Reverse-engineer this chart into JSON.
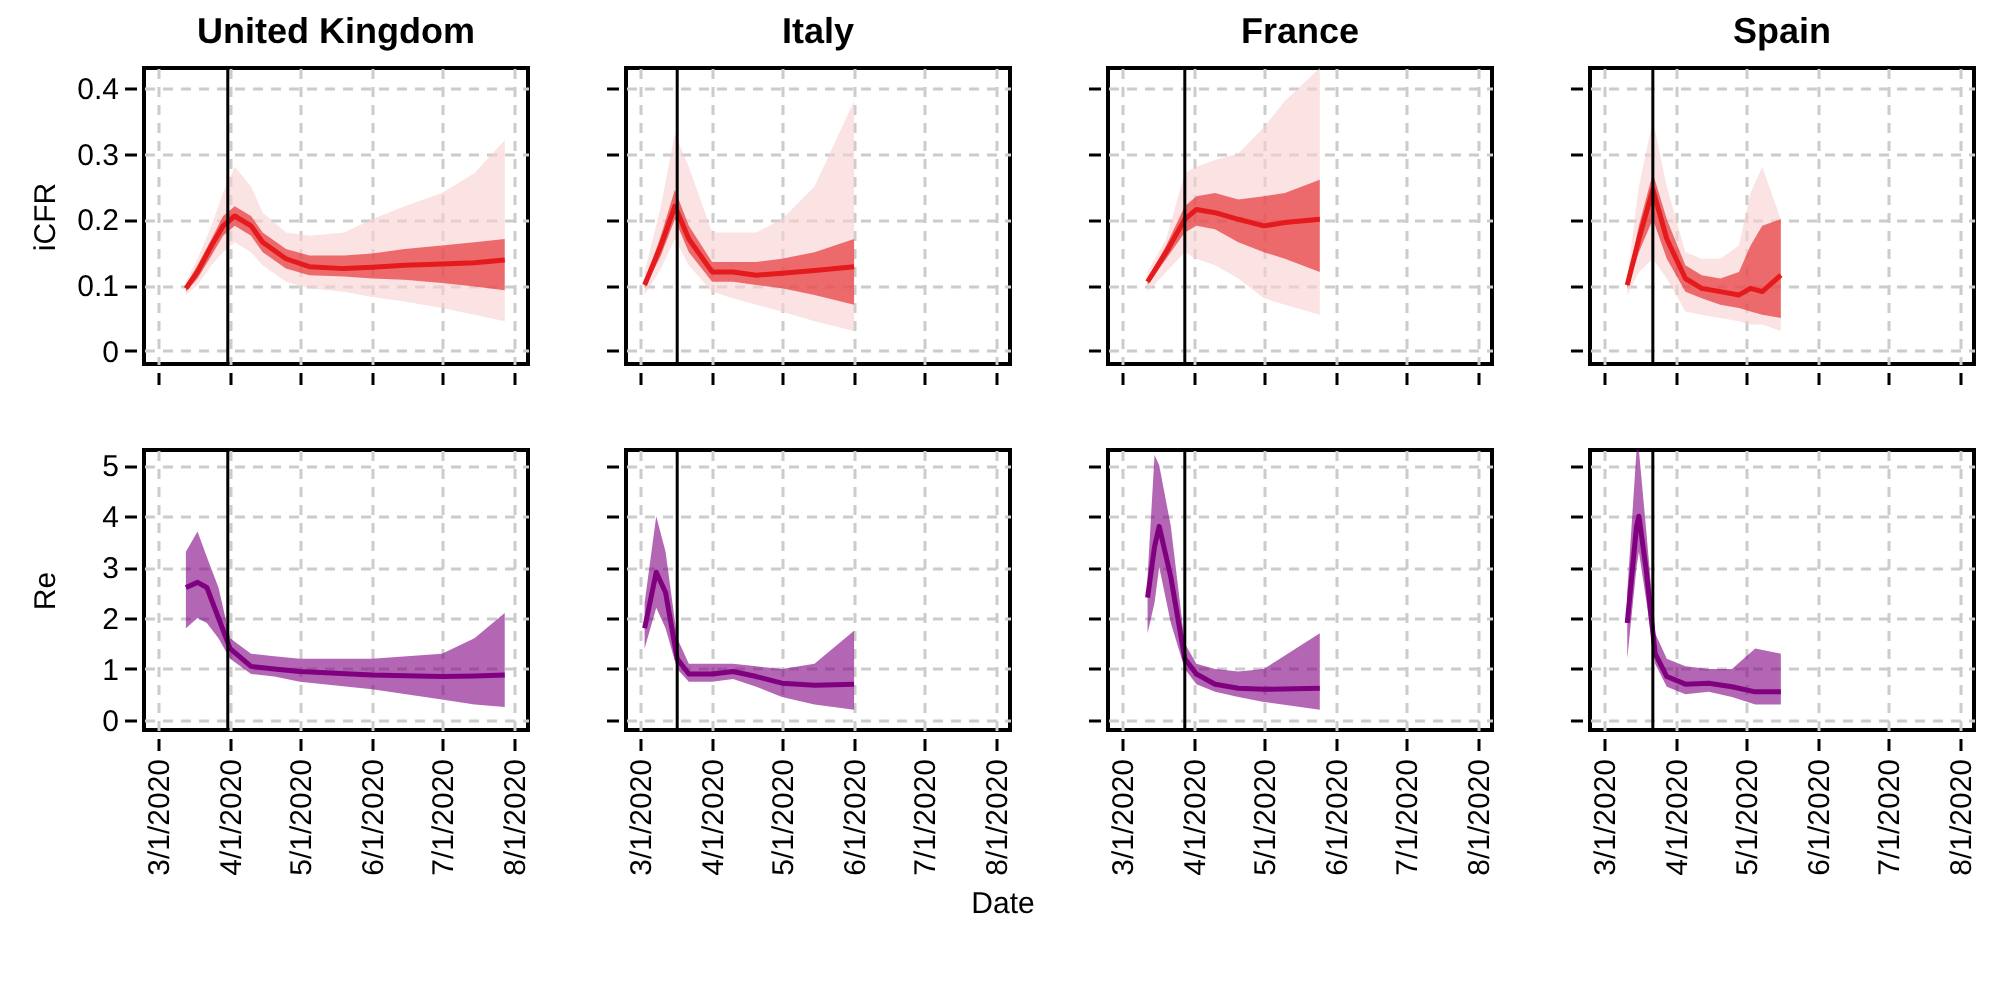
{
  "chart_data": [
    {
      "type": "line",
      "title": "United Kingdom",
      "ylabel": "iCFR",
      "x": [
        "2020-03-13",
        "2020-03-18",
        "2020-03-24",
        "2020-03-29",
        "2020-04-03",
        "2020-04-10",
        "2020-04-15",
        "2020-04-25",
        "2020-05-05",
        "2020-05-20",
        "2020-06-01",
        "2020-06-15",
        "2020-07-01",
        "2020-07-15",
        "2020-07-28"
      ],
      "series": [
        {
          "color": "#e41a1c",
          "values": [
            0.095,
            0.12,
            0.16,
            0.19,
            0.205,
            0.19,
            0.165,
            0.14,
            0.128,
            0.125,
            0.127,
            0.13,
            0.132,
            0.134,
            0.138
          ],
          "lower": [
            0.09,
            0.11,
            0.145,
            0.175,
            0.19,
            0.175,
            0.15,
            0.125,
            0.115,
            0.113,
            0.11,
            0.108,
            0.103,
            0.098,
            0.092
          ],
          "upper": [
            0.1,
            0.13,
            0.17,
            0.205,
            0.22,
            0.205,
            0.18,
            0.155,
            0.145,
            0.145,
            0.148,
            0.155,
            0.16,
            0.165,
            0.17
          ]
        },
        {
          "color": "#f9cfd1",
          "values": [
            null,
            null,
            null,
            null,
            null,
            null,
            null,
            null,
            null,
            null,
            null,
            null,
            null,
            null,
            null
          ],
          "lower": [
            0.085,
            0.1,
            0.13,
            0.15,
            0.165,
            0.15,
            0.13,
            0.105,
            0.095,
            0.09,
            0.082,
            0.075,
            0.065,
            0.055,
            0.045
          ],
          "upper": [
            0.105,
            0.14,
            0.19,
            0.24,
            0.28,
            0.25,
            0.21,
            0.18,
            0.175,
            0.18,
            0.2,
            0.22,
            0.24,
            0.27,
            0.32
          ]
        }
      ],
      "xlim": [
        "2020-02-24",
        "2020-08-07"
      ],
      "xticks": [
        {
          "value": "2020-03-01",
          "label": null
        },
        {
          "value": "2020-04-01",
          "label": null
        },
        {
          "value": "2020-05-01",
          "label": null
        },
        {
          "value": "2020-06-01",
          "label": null
        },
        {
          "value": "2020-07-01",
          "label": null
        },
        {
          "value": "2020-08-01",
          "label": null
        }
      ],
      "ylim": [
        -0.02,
        0.43
      ],
      "yticks": [
        0,
        0.1,
        0.2,
        0.3,
        0.4
      ],
      "grid": true,
      "tick_labels": "y",
      "ref_lines": [
        {
          "axis": "x",
          "value": "2020-03-31"
        }
      ]
    },
    {
      "type": "line",
      "title": "Italy",
      "x": [
        "2020-03-03",
        "2020-03-10",
        "2020-03-16",
        "2020-03-22",
        "2020-04-01",
        "2020-04-10",
        "2020-04-20",
        "2020-05-01",
        "2020-05-15",
        "2020-06-01"
      ],
      "series": [
        {
          "color": "#e41a1c",
          "values": [
            0.1,
            0.16,
            0.22,
            0.17,
            0.12,
            0.12,
            0.115,
            0.118,
            0.122,
            0.128
          ],
          "lower": [
            0.095,
            0.145,
            0.2,
            0.15,
            0.105,
            0.105,
            0.1,
            0.095,
            0.085,
            0.07
          ],
          "upper": [
            0.105,
            0.175,
            0.245,
            0.19,
            0.135,
            0.135,
            0.135,
            0.14,
            0.15,
            0.17
          ]
        },
        {
          "color": "#f9cfd1",
          "values": [
            null,
            null,
            null,
            null,
            null,
            null,
            null,
            null,
            null,
            null
          ],
          "lower": [
            0.085,
            0.125,
            0.17,
            0.13,
            0.09,
            0.08,
            0.07,
            0.06,
            0.045,
            0.03
          ],
          "upper": [
            0.12,
            0.22,
            0.33,
            0.28,
            0.18,
            0.18,
            0.18,
            0.2,
            0.25,
            0.38
          ]
        }
      ],
      "xlim": [
        "2020-02-24",
        "2020-08-07"
      ],
      "xticks": [
        {
          "value": "2020-03-01",
          "label": null
        },
        {
          "value": "2020-04-01",
          "label": null
        },
        {
          "value": "2020-05-01",
          "label": null
        },
        {
          "value": "2020-06-01",
          "label": null
        },
        {
          "value": "2020-07-01",
          "label": null
        },
        {
          "value": "2020-08-01",
          "label": null
        }
      ],
      "ylim": [
        -0.02,
        0.43
      ],
      "yticks": [
        0,
        0.1,
        0.2,
        0.3,
        0.4
      ],
      "grid": true,
      "tick_labels": false,
      "ref_lines": [
        {
          "axis": "x",
          "value": "2020-03-17"
        }
      ]
    },
    {
      "type": "line",
      "title": "France",
      "x": [
        "2020-03-12",
        "2020-03-20",
        "2020-03-28",
        "2020-04-02",
        "2020-04-10",
        "2020-04-20",
        "2020-05-01",
        "2020-05-10",
        "2020-05-25"
      ],
      "series": [
        {
          "color": "#e41a1c",
          "values": [
            0.105,
            0.15,
            0.2,
            0.215,
            0.21,
            0.2,
            0.19,
            0.195,
            0.2
          ],
          "lower": [
            0.1,
            0.14,
            0.18,
            0.19,
            0.185,
            0.165,
            0.15,
            0.14,
            0.12
          ],
          "upper": [
            0.11,
            0.16,
            0.22,
            0.235,
            0.24,
            0.23,
            0.235,
            0.24,
            0.26
          ]
        },
        {
          "color": "#f9cfd1",
          "values": [
            null,
            null,
            null,
            null,
            null,
            null,
            null,
            null,
            null
          ],
          "lower": [
            0.09,
            0.12,
            0.15,
            0.14,
            0.13,
            0.11,
            0.08,
            0.07,
            0.055
          ],
          "upper": [
            0.12,
            0.17,
            0.27,
            0.28,
            0.29,
            0.3,
            0.34,
            0.38,
            0.43
          ]
        }
      ],
      "xlim": [
        "2020-02-24",
        "2020-08-07"
      ],
      "xticks": [
        {
          "value": "2020-03-01",
          "label": null
        },
        {
          "value": "2020-04-01",
          "label": null
        },
        {
          "value": "2020-05-01",
          "label": null
        },
        {
          "value": "2020-06-01",
          "label": null
        },
        {
          "value": "2020-07-01",
          "label": null
        },
        {
          "value": "2020-08-01",
          "label": null
        }
      ],
      "ylim": [
        -0.02,
        0.43
      ],
      "yticks": [
        0,
        0.1,
        0.2,
        0.3,
        0.4
      ],
      "grid": true,
      "tick_labels": false,
      "ref_lines": [
        {
          "axis": "x",
          "value": "2020-03-28"
        }
      ]
    },
    {
      "type": "line",
      "title": "Spain",
      "x": [
        "2020-03-11",
        "2020-03-16",
        "2020-03-22",
        "2020-03-28",
        "2020-04-05",
        "2020-04-12",
        "2020-04-20",
        "2020-04-28",
        "2020-05-03",
        "2020-05-08",
        "2020-05-16"
      ],
      "series": [
        {
          "color": "#e41a1c",
          "values": [
            0.1,
            0.17,
            0.245,
            0.17,
            0.11,
            0.095,
            0.09,
            0.085,
            0.095,
            0.09,
            0.115
          ],
          "lower": [
            0.095,
            0.15,
            0.2,
            0.14,
            0.09,
            0.08,
            0.07,
            0.065,
            0.06,
            0.055,
            0.05
          ],
          "upper": [
            0.105,
            0.19,
            0.27,
            0.2,
            0.13,
            0.115,
            0.11,
            0.12,
            0.16,
            0.19,
            0.2
          ]
        },
        {
          "color": "#f9cfd1",
          "values": [
            null,
            null,
            null,
            null,
            null,
            null,
            null,
            null,
            null,
            null,
            null
          ],
          "lower": [
            0.085,
            0.12,
            0.14,
            0.11,
            0.06,
            0.055,
            0.05,
            0.045,
            0.04,
            0.04,
            0.03
          ],
          "upper": [
            0.11,
            0.25,
            0.35,
            0.25,
            0.15,
            0.14,
            0.14,
            0.16,
            0.24,
            0.28,
            0.2
          ]
        }
      ],
      "xlim": [
        "2020-02-24",
        "2020-08-07"
      ],
      "xticks": [
        {
          "value": "2020-03-01",
          "label": null
        },
        {
          "value": "2020-04-01",
          "label": null
        },
        {
          "value": "2020-05-01",
          "label": null
        },
        {
          "value": "2020-06-01",
          "label": null
        },
        {
          "value": "2020-07-01",
          "label": null
        },
        {
          "value": "2020-08-01",
          "label": null
        }
      ],
      "ylim": [
        -0.02,
        0.43
      ],
      "yticks": [
        0,
        0.1,
        0.2,
        0.3,
        0.4
      ],
      "grid": true,
      "tick_labels": false,
      "ref_lines": [
        {
          "axis": "x",
          "value": "2020-03-22"
        }
      ]
    },
    {
      "type": "line",
      "ylabel": "Re",
      "x": [
        "2020-03-13",
        "2020-03-18",
        "2020-03-22",
        "2020-03-27",
        "2020-04-01",
        "2020-04-10",
        "2020-04-20",
        "2020-05-01",
        "2020-06-01",
        "2020-07-01",
        "2020-07-15",
        "2020-07-28"
      ],
      "series": [
        {
          "color": "#800080",
          "values": [
            2.6,
            2.7,
            2.6,
            2.0,
            1.4,
            1.05,
            1.0,
            0.95,
            0.88,
            0.85,
            0.86,
            0.88
          ],
          "lower": [
            1.8,
            2.0,
            1.9,
            1.6,
            1.2,
            0.9,
            0.85,
            0.75,
            0.6,
            0.4,
            0.3,
            0.25
          ],
          "upper": [
            3.3,
            3.7,
            3.2,
            2.6,
            1.6,
            1.3,
            1.25,
            1.2,
            1.2,
            1.3,
            1.6,
            2.1
          ]
        }
      ],
      "xlim": [
        "2020-02-24",
        "2020-08-07"
      ],
      "xticks": [
        {
          "value": "2020-03-01",
          "label": "3/1/2020"
        },
        {
          "value": "2020-04-01",
          "label": "4/1/2020"
        },
        {
          "value": "2020-05-01",
          "label": "5/1/2020"
        },
        {
          "value": "2020-06-01",
          "label": "6/1/2020"
        },
        {
          "value": "2020-07-01",
          "label": "7/1/2020"
        },
        {
          "value": "2020-08-01",
          "label": "8/1/2020"
        }
      ],
      "ylim": [
        -0.2,
        5.3
      ],
      "yticks": [
        0,
        1,
        2,
        3,
        4,
        5
      ],
      "grid": true,
      "ref_lines": [
        {
          "axis": "x",
          "value": "2020-03-31"
        }
      ]
    },
    {
      "type": "line",
      "xlabel": "Date",
      "x": [
        "2020-03-03",
        "2020-03-08",
        "2020-03-12",
        "2020-03-17",
        "2020-03-22",
        "2020-04-01",
        "2020-04-10",
        "2020-04-20",
        "2020-05-01",
        "2020-05-15",
        "2020-06-01"
      ],
      "series": [
        {
          "color": "#800080",
          "values": [
            1.8,
            2.9,
            2.5,
            1.2,
            0.9,
            0.9,
            0.95,
            0.85,
            0.72,
            0.68,
            0.7
          ],
          "lower": [
            1.4,
            2.2,
            1.8,
            1.0,
            0.75,
            0.75,
            0.8,
            0.65,
            0.45,
            0.3,
            0.2
          ],
          "upper": [
            2.3,
            4.0,
            3.3,
            1.6,
            1.1,
            1.1,
            1.1,
            1.05,
            1.0,
            1.1,
            1.75
          ]
        }
      ],
      "xlim": [
        "2020-02-24",
        "2020-08-07"
      ],
      "xticks": [
        {
          "value": "2020-03-01",
          "label": "3/1/2020"
        },
        {
          "value": "2020-04-01",
          "label": "4/1/2020"
        },
        {
          "value": "2020-05-01",
          "label": "5/1/2020"
        },
        {
          "value": "2020-06-01",
          "label": "6/1/2020"
        },
        {
          "value": "2020-07-01",
          "label": "7/1/2020"
        },
        {
          "value": "2020-08-01",
          "label": "8/1/2020"
        }
      ],
      "ylim": [
        -0.2,
        5.3
      ],
      "yticks": [
        0,
        1,
        2,
        3,
        4,
        5
      ],
      "grid": true,
      "tick_labels": "x",
      "ref_lines": [
        {
          "axis": "x",
          "value": "2020-03-17"
        }
      ]
    },
    {
      "type": "line",
      "x": [
        "2020-03-12",
        "2020-03-15",
        "2020-03-17",
        "2020-03-22",
        "2020-03-28",
        "2020-04-02",
        "2020-04-10",
        "2020-04-20",
        "2020-05-01",
        "2020-05-25"
      ],
      "series": [
        {
          "color": "#800080",
          "values": [
            2.4,
            3.4,
            3.8,
            2.8,
            1.2,
            0.9,
            0.7,
            0.62,
            0.6,
            0.62
          ],
          "lower": [
            1.7,
            2.3,
            3.0,
            1.9,
            1.0,
            0.7,
            0.55,
            0.45,
            0.35,
            0.2
          ],
          "upper": [
            2.8,
            5.2,
            5.0,
            3.8,
            1.5,
            1.1,
            1.0,
            0.95,
            1.0,
            1.7
          ]
        }
      ],
      "xlim": [
        "2020-02-24",
        "2020-08-07"
      ],
      "xticks": [
        {
          "value": "2020-03-01",
          "label": "3/1/2020"
        },
        {
          "value": "2020-04-01",
          "label": "4/1/2020"
        },
        {
          "value": "2020-05-01",
          "label": "5/1/2020"
        },
        {
          "value": "2020-06-01",
          "label": "6/1/2020"
        },
        {
          "value": "2020-07-01",
          "label": "7/1/2020"
        },
        {
          "value": "2020-08-01",
          "label": "8/1/2020"
        }
      ],
      "ylim": [
        -0.2,
        5.3
      ],
      "yticks": [
        0,
        1,
        2,
        3,
        4,
        5
      ],
      "grid": true,
      "tick_labels": "x",
      "ref_lines": [
        {
          "axis": "x",
          "value": "2020-03-28"
        }
      ]
    },
    {
      "type": "line",
      "x": [
        "2020-03-11",
        "2020-03-15",
        "2020-03-16",
        "2020-03-19",
        "2020-03-23",
        "2020-03-28",
        "2020-04-05",
        "2020-04-15",
        "2020-04-25",
        "2020-05-05",
        "2020-05-16"
      ],
      "series": [
        {
          "color": "#800080",
          "values": [
            1.9,
            3.8,
            4.0,
            3.0,
            1.3,
            0.85,
            0.7,
            0.72,
            0.65,
            0.55,
            0.55
          ],
          "lower": [
            1.2,
            3.0,
            3.3,
            2.4,
            1.1,
            0.65,
            0.5,
            0.55,
            0.45,
            0.3,
            0.3
          ],
          "upper": [
            2.5,
            5.3,
            5.3,
            3.8,
            1.7,
            1.2,
            1.05,
            1.0,
            1.0,
            1.4,
            1.3
          ]
        }
      ],
      "xlim": [
        "2020-02-24",
        "2020-08-07"
      ],
      "xticks": [
        {
          "value": "2020-03-01",
          "label": "3/1/2020"
        },
        {
          "value": "2020-04-01",
          "label": "4/1/2020"
        },
        {
          "value": "2020-05-01",
          "label": "5/1/2020"
        },
        {
          "value": "2020-06-01",
          "label": "6/1/2020"
        },
        {
          "value": "2020-07-01",
          "label": "7/1/2020"
        },
        {
          "value": "2020-08-01",
          "label": "8/1/2020"
        }
      ],
      "ylim": [
        -0.2,
        5.3
      ],
      "yticks": [
        0,
        1,
        2,
        3,
        4,
        5
      ],
      "grid": true,
      "tick_labels": "x",
      "ref_lines": [
        {
          "axis": "x",
          "value": "2020-03-22"
        }
      ]
    }
  ]
}
